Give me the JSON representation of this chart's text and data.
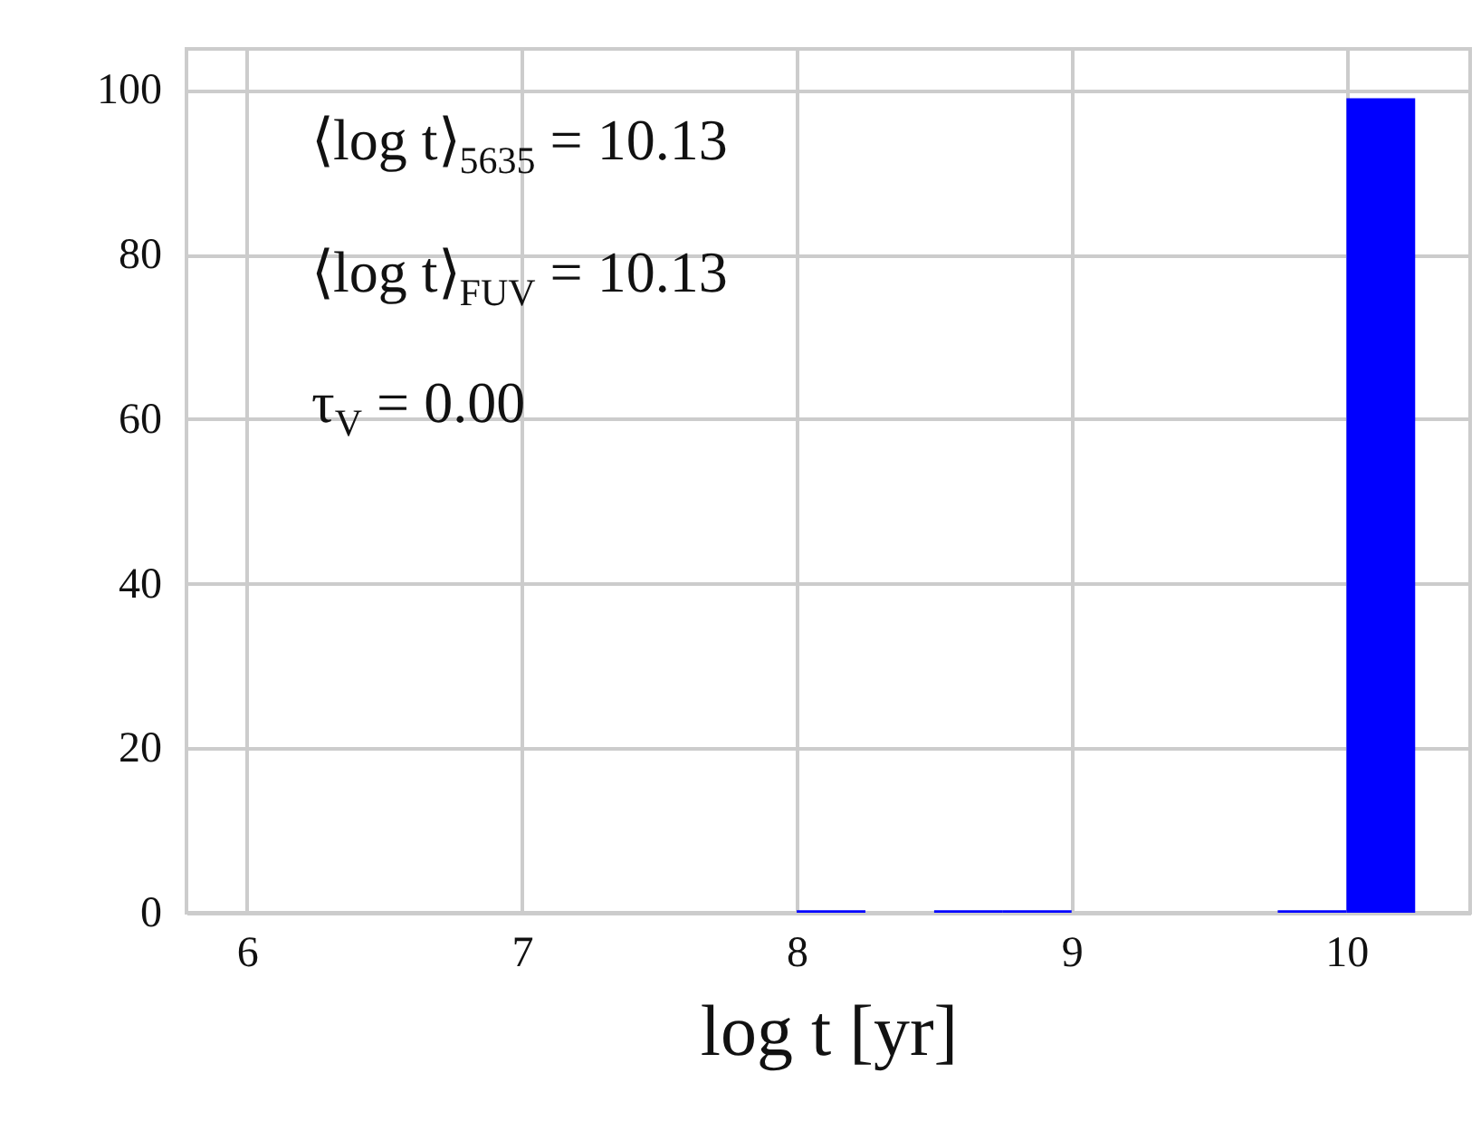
{
  "chart_data": {
    "type": "histogram",
    "xlabel": "log t [yr]",
    "bins": [
      8.0,
      8.25,
      8.5,
      8.75,
      9.0,
      9.25,
      9.5,
      9.75,
      10.0,
      10.25
    ],
    "values": [
      0.3,
      0,
      0.3,
      0.3,
      0,
      0,
      0,
      0.3,
      99
    ],
    "color": "#0000ff",
    "xlim": [
      5.78,
      10.45
    ],
    "xticks": [
      6,
      7,
      8,
      9,
      10
    ],
    "ylim": [
      0,
      105
    ],
    "yticks": [
      0,
      20,
      40,
      60,
      80,
      100
    ],
    "grid": true,
    "annotations": [
      "⟨log t⟩$_{5635}$ = 10.13",
      "⟨log t⟩$_{FUV}$ = 10.13",
      "τ$_{V}$ = 0.00"
    ]
  }
}
